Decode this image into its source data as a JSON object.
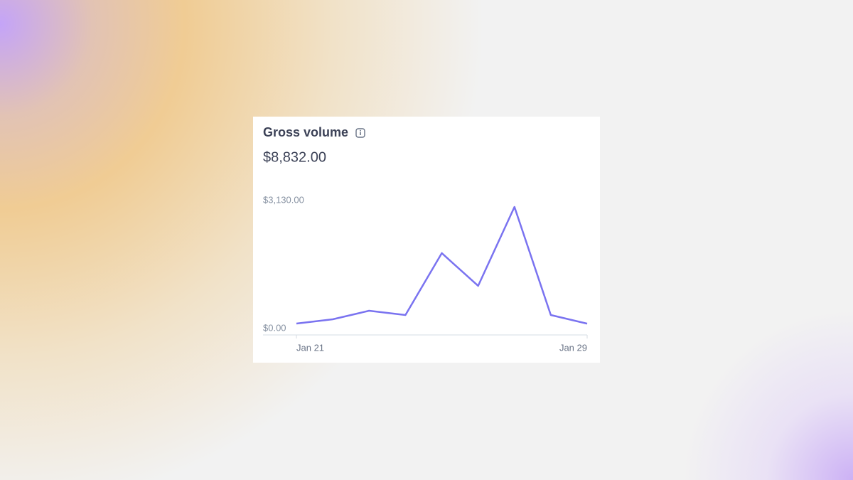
{
  "chart_data": {
    "type": "line",
    "title": "Gross volume",
    "total": "$8,832.00",
    "categories": [
      "Jan 21",
      null,
      null,
      null,
      null,
      null,
      null,
      null,
      "Jan 29"
    ],
    "values": [
      278,
      383,
      591,
      487,
      2000,
      1200,
      3130,
      487,
      276
    ],
    "color": "#7a73f0",
    "ylim": [
      0,
      3130
    ],
    "yticks": [
      {
        "value": 0,
        "label": "$0.00"
      },
      {
        "value": 3130,
        "label": "$3,130.00"
      }
    ],
    "grid": false
  }
}
